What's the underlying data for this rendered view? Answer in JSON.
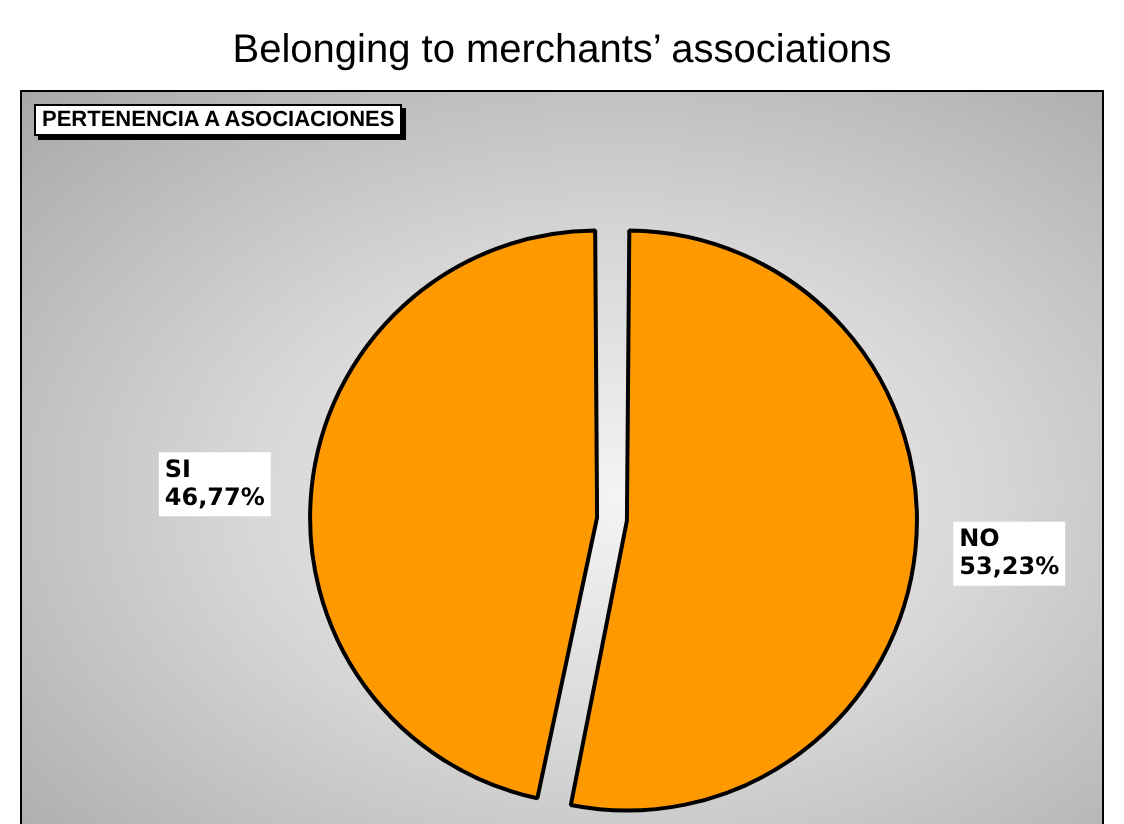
{
  "chart_data": {
    "type": "pie",
    "title": "Belonging to merchants’ associations",
    "subtitle": "PERTENENCIA A ASOCIACIONES",
    "categories": [
      "NO",
      "SI"
    ],
    "values": [
      53.23,
      46.77
    ],
    "value_labels": [
      "53,23%",
      "46,77%"
    ],
    "colors": [
      "#ff9900",
      "#ff9900"
    ],
    "legend": false
  }
}
